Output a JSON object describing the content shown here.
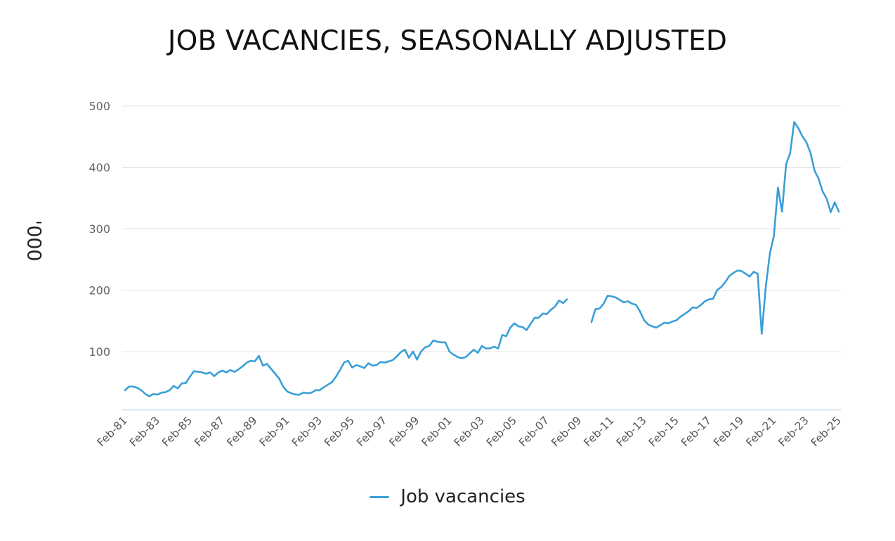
{
  "title": "JOB VACANCIES, SEASONALLY ADJUSTED",
  "chart_data": {
    "type": "line",
    "ylabel": "'000",
    "xlabel": "",
    "ylim": [
      0,
      500
    ],
    "yticks": [
      100,
      200,
      300,
      400,
      500
    ],
    "grid": true,
    "legend_position": "bottom",
    "x_tick_labels": [
      "Feb-81",
      "Feb-83",
      "Feb-85",
      "Feb-87",
      "Feb-89",
      "Feb-91",
      "Feb-93",
      "Feb-95",
      "Feb-97",
      "Feb-99",
      "Feb-01",
      "Feb-03",
      "Feb-05",
      "Feb-07",
      "Feb-09",
      "Feb-11",
      "Feb-13",
      "Feb-15",
      "Feb-17",
      "Feb-19",
      "Feb-21",
      "Feb-23",
      "Feb-25"
    ],
    "color": "#3a9fd6",
    "series": [
      {
        "name": "Job vacancies",
        "segments": [
          [
            [
              "1981-02",
              37
            ],
            [
              "1981-05",
              43
            ],
            [
              "1981-08",
              43
            ],
            [
              "1981-11",
              41
            ],
            [
              "1982-02",
              37
            ],
            [
              "1982-05",
              31
            ],
            [
              "1982-08",
              27
            ],
            [
              "1982-11",
              31
            ],
            [
              "1983-02",
              30
            ],
            [
              "1983-05",
              33
            ],
            [
              "1983-08",
              34
            ],
            [
              "1983-11",
              37
            ],
            [
              "1984-02",
              44
            ],
            [
              "1984-05",
              40
            ],
            [
              "1984-08",
              48
            ],
            [
              "1984-11",
              49
            ],
            [
              "1985-02",
              59
            ],
            [
              "1985-05",
              68
            ],
            [
              "1985-08",
              67
            ],
            [
              "1985-11",
              66
            ],
            [
              "1986-02",
              64
            ],
            [
              "1986-05",
              66
            ],
            [
              "1986-08",
              60
            ],
            [
              "1986-11",
              66
            ],
            [
              "1987-02",
              69
            ],
            [
              "1987-05",
              66
            ],
            [
              "1987-08",
              70
            ],
            [
              "1987-11",
              67
            ],
            [
              "1988-02",
              71
            ],
            [
              "1988-05",
              76
            ],
            [
              "1988-08",
              82
            ],
            [
              "1988-11",
              85
            ],
            [
              "1989-02",
              84
            ],
            [
              "1989-05",
              93
            ],
            [
              "1989-08",
              77
            ],
            [
              "1989-11",
              80
            ],
            [
              "1990-02",
              72
            ],
            [
              "1990-05",
              64
            ],
            [
              "1990-08",
              56
            ],
            [
              "1990-11",
              43
            ],
            [
              "1991-02",
              35
            ],
            [
              "1991-05",
              32
            ],
            [
              "1991-08",
              30
            ],
            [
              "1991-11",
              30
            ],
            [
              "1992-02",
              33
            ],
            [
              "1992-05",
              32
            ],
            [
              "1992-08",
              33
            ],
            [
              "1992-11",
              37
            ],
            [
              "1993-02",
              37
            ],
            [
              "1993-05",
              42
            ],
            [
              "1993-08",
              46
            ],
            [
              "1993-11",
              50
            ],
            [
              "1994-02",
              59
            ],
            [
              "1994-05",
              70
            ],
            [
              "1994-08",
              82
            ],
            [
              "1994-11",
              85
            ],
            [
              "1995-02",
              74
            ],
            [
              "1995-05",
              78
            ],
            [
              "1995-08",
              76
            ],
            [
              "1995-11",
              73
            ],
            [
              "1996-02",
              81
            ],
            [
              "1996-05",
              77
            ],
            [
              "1996-08",
              78
            ],
            [
              "1996-11",
              83
            ],
            [
              "1997-02",
              82
            ],
            [
              "1997-05",
              84
            ],
            [
              "1997-08",
              86
            ],
            [
              "1997-11",
              92
            ],
            [
              "1998-02",
              99
            ],
            [
              "1998-05",
              103
            ],
            [
              "1998-08",
              90
            ],
            [
              "1998-11",
              100
            ],
            [
              "1999-02",
              87
            ],
            [
              "1999-05",
              100
            ],
            [
              "1999-08",
              107
            ],
            [
              "1999-11",
              109
            ],
            [
              "2000-02",
              118
            ],
            [
              "2000-05",
              116
            ],
            [
              "2000-08",
              115
            ],
            [
              "2000-11",
              115
            ],
            [
              "2001-02",
              100
            ],
            [
              "2001-05",
              95
            ],
            [
              "2001-08",
              91
            ],
            [
              "2001-11",
              89
            ],
            [
              "2002-02",
              91
            ],
            [
              "2002-05",
              97
            ],
            [
              "2002-08",
              103
            ],
            [
              "2002-11",
              98
            ],
            [
              "2003-02",
              109
            ],
            [
              "2003-05",
              105
            ],
            [
              "2003-08",
              105
            ],
            [
              "2003-11",
              108
            ],
            [
              "2004-02",
              105
            ],
            [
              "2004-05",
              127
            ],
            [
              "2004-08",
              125
            ],
            [
              "2004-11",
              139
            ],
            [
              "2005-02",
              146
            ],
            [
              "2005-05",
              141
            ],
            [
              "2005-08",
              140
            ],
            [
              "2005-11",
              135
            ],
            [
              "2006-02",
              145
            ],
            [
              "2006-05",
              155
            ],
            [
              "2006-08",
              155
            ],
            [
              "2006-11",
              162
            ],
            [
              "2007-02",
              161
            ],
            [
              "2007-05",
              168
            ],
            [
              "2007-08",
              173
            ],
            [
              "2007-11",
              183
            ],
            [
              "2008-02",
              179
            ],
            [
              "2008-05",
              185
            ]
          ],
          [
            [
              "2009-11",
              148
            ],
            [
              "2010-02",
              169
            ],
            [
              "2010-05",
              170
            ],
            [
              "2010-08",
              178
            ],
            [
              "2010-11",
              191
            ],
            [
              "2011-02",
              190
            ],
            [
              "2011-05",
              188
            ],
            [
              "2011-08",
              184
            ],
            [
              "2011-11",
              180
            ],
            [
              "2012-02",
              182
            ],
            [
              "2012-05",
              178
            ],
            [
              "2012-08",
              176
            ],
            [
              "2012-11",
              165
            ],
            [
              "2013-02",
              151
            ],
            [
              "2013-05",
              144
            ],
            [
              "2013-08",
              141
            ],
            [
              "2013-11",
              139
            ],
            [
              "2014-02",
              143
            ],
            [
              "2014-05",
              147
            ],
            [
              "2014-08",
              146
            ],
            [
              "2014-11",
              149
            ],
            [
              "2015-02",
              151
            ],
            [
              "2015-05",
              157
            ],
            [
              "2015-08",
              161
            ],
            [
              "2015-11",
              166
            ],
            [
              "2016-02",
              172
            ],
            [
              "2016-05",
              171
            ],
            [
              "2016-08",
              176
            ],
            [
              "2016-11",
              182
            ],
            [
              "2017-02",
              185
            ],
            [
              "2017-05",
              186
            ],
            [
              "2017-08",
              200
            ],
            [
              "2017-11",
              205
            ],
            [
              "2018-02",
              213
            ],
            [
              "2018-05",
              223
            ],
            [
              "2018-08",
              228
            ],
            [
              "2018-11",
              232
            ],
            [
              "2019-02",
              231
            ],
            [
              "2019-05",
              227
            ],
            [
              "2019-08",
              222
            ],
            [
              "2019-11",
              230
            ],
            [
              "2020-02",
              227
            ],
            [
              "2020-05",
              129
            ],
            [
              "2020-08",
              206
            ],
            [
              "2020-11",
              260
            ],
            [
              "2021-02",
              288
            ],
            [
              "2021-05",
              367
            ],
            [
              "2021-08",
              328
            ],
            [
              "2021-11",
              405
            ],
            [
              "2022-02",
              423
            ],
            [
              "2022-05",
              474
            ],
            [
              "2022-08",
              464
            ],
            [
              "2022-11",
              451
            ],
            [
              "2023-02",
              441
            ],
            [
              "2023-05",
              424
            ],
            [
              "2023-08",
              395
            ],
            [
              "2023-11",
              382
            ],
            [
              "2024-02",
              361
            ],
            [
              "2024-05",
              349
            ],
            [
              "2024-08",
              327
            ],
            [
              "2024-11",
              343
            ],
            [
              "2025-02",
              328
            ]
          ]
        ]
      }
    ]
  }
}
